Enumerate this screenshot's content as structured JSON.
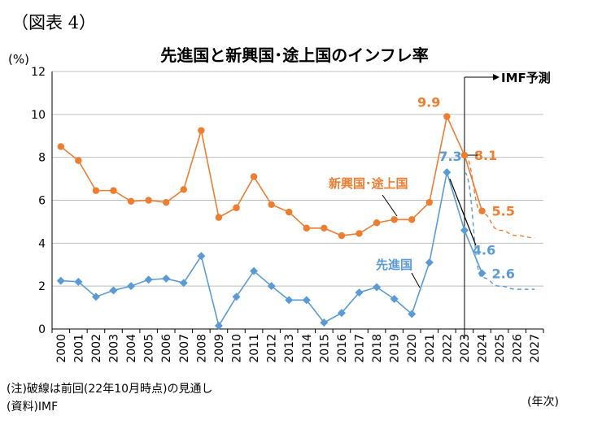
{
  "figure_label": "（図表 4）",
  "notes": {
    "forecast_note": "(注)破線は前回(22年10月時点)の見通し",
    "source": "(資料)IMF",
    "x_unit": "(年次)"
  },
  "colors": {
    "emerging": "#ED7D31",
    "advanced": "#5B9BD5",
    "grid": "#bfbfbf",
    "axis": "#000000"
  },
  "chart_data": {
    "type": "line",
    "title": "先進国と新興国･途上国のインフレ率",
    "ylabel": "(%)",
    "xlabel": "(年次)",
    "ylim": [
      0,
      12
    ],
    "yticks": [
      0,
      2,
      4,
      6,
      8,
      10,
      12
    ],
    "grid": true,
    "x": [
      "2000",
      "2001",
      "2002",
      "2003",
      "2004",
      "2005",
      "2006",
      "2007",
      "2008",
      "2009",
      "2010",
      "2011",
      "2012",
      "2013",
      "2014",
      "2015",
      "2016",
      "2017",
      "2018",
      "2019",
      "2020",
      "2021",
      "2022",
      "2023",
      "2024",
      "2025",
      "2026",
      "2027"
    ],
    "series": [
      {
        "name": "新興国･途上国",
        "color_key": "emerging",
        "marker": "circle",
        "values": [
          8.5,
          7.85,
          6.45,
          6.45,
          5.95,
          6.0,
          5.9,
          6.5,
          9.25,
          5.2,
          5.65,
          7.1,
          5.8,
          5.45,
          4.7,
          4.7,
          4.35,
          4.45,
          4.95,
          5.1,
          5.1,
          5.9,
          9.9,
          8.1,
          5.5,
          null,
          null,
          null
        ],
        "previous_forecast": {
          "x": [
            "2023",
            "2024",
            "2025",
            "2026",
            "2027"
          ],
          "values": [
            8.1,
            5.4,
            4.6,
            4.35,
            4.25
          ]
        }
      },
      {
        "name": "先進国",
        "color_key": "advanced",
        "marker": "diamond",
        "values": [
          2.25,
          2.2,
          1.5,
          1.8,
          2.0,
          2.3,
          2.35,
          2.15,
          3.4,
          0.15,
          1.5,
          2.7,
          2.0,
          1.35,
          1.35,
          0.3,
          0.75,
          1.7,
          1.95,
          1.4,
          0.7,
          3.1,
          7.3,
          4.6,
          2.6,
          null,
          null,
          null
        ],
        "previous_forecast": {
          "x": [
            "2023",
            "2024",
            "2025",
            "2026",
            "2027"
          ],
          "values": [
            7.3,
            2.4,
            2.0,
            1.85,
            1.85
          ]
        }
      }
    ],
    "annotations": [
      {
        "text": "9.9",
        "series": 0,
        "x": "2022",
        "value": 9.9
      },
      {
        "text": "8.1",
        "series": 0,
        "x": "2023",
        "value": 8.1
      },
      {
        "text": "5.5",
        "series": 0,
        "x": "2024",
        "value": 5.5
      },
      {
        "text": "7.3",
        "series": 1,
        "x": "2022",
        "value": 7.3
      },
      {
        "text": "4.6",
        "series": 1,
        "x": "2023",
        "value": 4.6
      },
      {
        "text": "2.6",
        "series": 1,
        "x": "2024",
        "value": 2.6
      }
    ],
    "series_labels": [
      {
        "text": "新興国･途上国",
        "series": 0
      },
      {
        "text": "先進国",
        "series": 1
      }
    ],
    "forecast_marker": {
      "x": "2023",
      "label": "IMF予測"
    }
  }
}
